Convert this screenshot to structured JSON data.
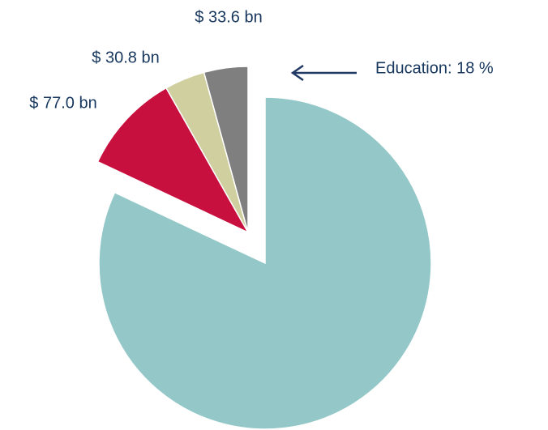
{
  "chart_data": {
    "type": "pie",
    "values": [
      644.2,
      77.0,
      30.8,
      33.6
    ],
    "value_labels": [
      null,
      "$ 77.0 bn",
      "$ 30.8 bn",
      "$ 33.6 bn"
    ],
    "colors": [
      "#94c8c8",
      "#c8103f",
      "#cfcf9f",
      "#7f7f7f"
    ],
    "annotation": "Education: 18 %"
  }
}
